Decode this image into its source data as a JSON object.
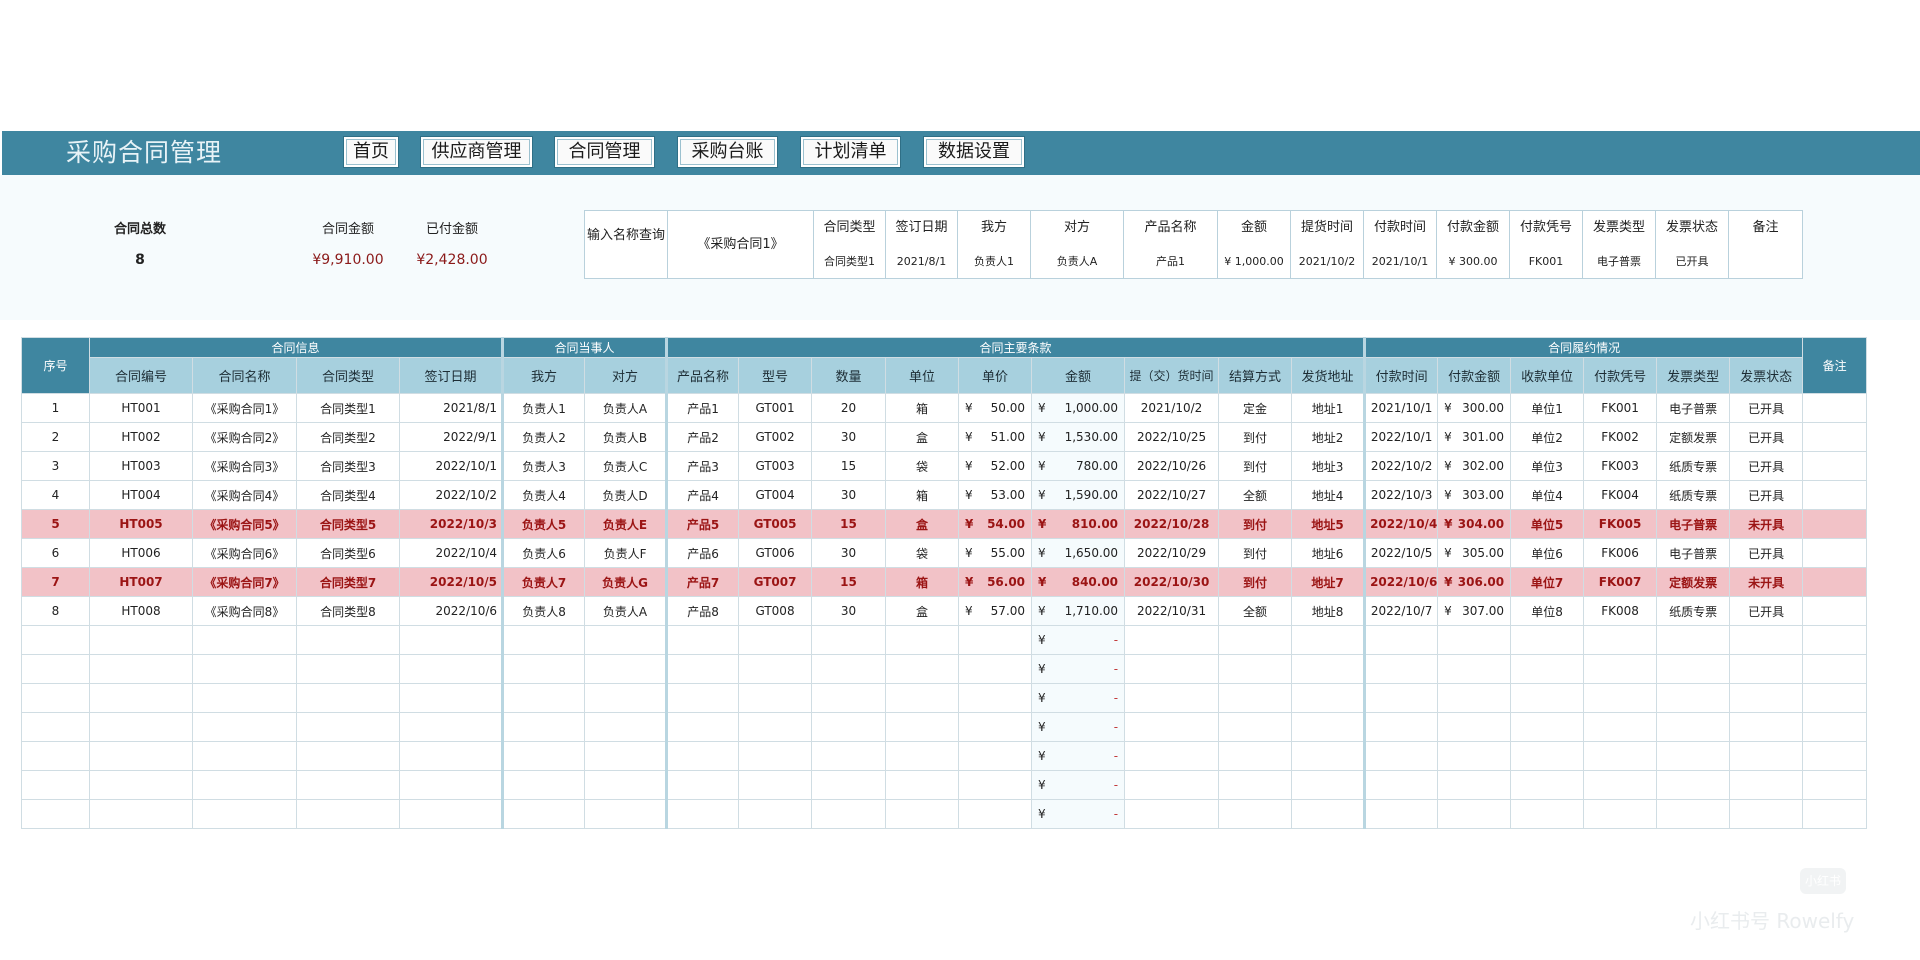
{
  "app": {
    "title": "采购合同管理"
  },
  "nav": [
    {
      "label": "首页"
    },
    {
      "label": "供应商管理"
    },
    {
      "label": "合同管理"
    },
    {
      "label": "采购台账"
    },
    {
      "label": "计划清单"
    },
    {
      "label": "数据设置"
    }
  ],
  "summary": {
    "total_label": "合同总数",
    "total_value": "8",
    "amount_label": "合同金额",
    "amount_value": "¥9,910.00",
    "paid_label": "已付金额",
    "paid_value": "¥2,428.00"
  },
  "query": {
    "label": "输入名称查询",
    "value": "《采购合同1》",
    "columns": [
      "合同类型",
      "签订日期",
      "我方",
      "对方",
      "产品名称",
      "金额",
      "提货时间",
      "付款时间",
      "付款金额",
      "付款凭号",
      "发票类型",
      "发票状态",
      "备注"
    ],
    "values": [
      "合同类型1",
      "2021/8/1",
      "负责人1",
      "负责人A",
      "产品1",
      "¥  1,000.00",
      "2021/10/2",
      "2021/10/1",
      "¥    300.00",
      "FK001",
      "电子普票",
      "已开具",
      ""
    ]
  },
  "table": {
    "seq_header": "序号",
    "remark_header": "备注",
    "groups": [
      "合同信息",
      "合同当事人",
      "合同主要条款",
      "合同履约情况"
    ],
    "headers": [
      "合同编号",
      "合同名称",
      "合同类型",
      "签订日期",
      "我方",
      "对方",
      "产品名称",
      "型号",
      "数量",
      "单位",
      "单价",
      "金额",
      "提（交）货时间",
      "结算方式",
      "发货地址",
      "付款时间",
      "付款金额",
      "收款单位",
      "付款凭号",
      "发票类型",
      "发票状态"
    ],
    "currency": "¥",
    "empty_amount": "-",
    "rows": [
      {
        "seq": "1",
        "no": "HT001",
        "name": "《采购合同1》",
        "type": "合同类型1",
        "date": "2021/8/1",
        "us": "负责人1",
        "them": "负责人A",
        "product": "产品1",
        "model": "GT001",
        "qty": "20",
        "unit": "箱",
        "price": "50.00",
        "amount": "1,000.00",
        "delivery": "2021/10/2",
        "settle": "定金",
        "addr": "地址1",
        "paytime": "2021/10/1",
        "payamt": "300.00",
        "payee": "单位1",
        "voucher": "FK001",
        "invtype": "电子普票",
        "invstatus": "已开具",
        "highlight": false
      },
      {
        "seq": "2",
        "no": "HT002",
        "name": "《采购合同2》",
        "type": "合同类型2",
        "date": "2022/9/1",
        "us": "负责人2",
        "them": "负责人B",
        "product": "产品2",
        "model": "GT002",
        "qty": "30",
        "unit": "盒",
        "price": "51.00",
        "amount": "1,530.00",
        "delivery": "2022/10/25",
        "settle": "到付",
        "addr": "地址2",
        "paytime": "2022/10/1",
        "payamt": "301.00",
        "payee": "单位2",
        "voucher": "FK002",
        "invtype": "定额发票",
        "invstatus": "已开具",
        "highlight": false
      },
      {
        "seq": "3",
        "no": "HT003",
        "name": "《采购合同3》",
        "type": "合同类型3",
        "date": "2022/10/1",
        "us": "负责人3",
        "them": "负责人C",
        "product": "产品3",
        "model": "GT003",
        "qty": "15",
        "unit": "袋",
        "price": "52.00",
        "amount": "780.00",
        "delivery": "2022/10/26",
        "settle": "到付",
        "addr": "地址3",
        "paytime": "2022/10/2",
        "payamt": "302.00",
        "payee": "单位3",
        "voucher": "FK003",
        "invtype": "纸质专票",
        "invstatus": "已开具",
        "highlight": false
      },
      {
        "seq": "4",
        "no": "HT004",
        "name": "《采购合同4》",
        "type": "合同类型4",
        "date": "2022/10/2",
        "us": "负责人4",
        "them": "负责人D",
        "product": "产品4",
        "model": "GT004",
        "qty": "30",
        "unit": "箱",
        "price": "53.00",
        "amount": "1,590.00",
        "delivery": "2022/10/27",
        "settle": "全额",
        "addr": "地址4",
        "paytime": "2022/10/3",
        "payamt": "303.00",
        "payee": "单位4",
        "voucher": "FK004",
        "invtype": "纸质专票",
        "invstatus": "已开具",
        "highlight": false
      },
      {
        "seq": "5",
        "no": "HT005",
        "name": "《采购合同5》",
        "type": "合同类型5",
        "date": "2022/10/3",
        "us": "负责人5",
        "them": "负责人E",
        "product": "产品5",
        "model": "GT005",
        "qty": "15",
        "unit": "盒",
        "price": "54.00",
        "amount": "810.00",
        "delivery": "2022/10/28",
        "settle": "到付",
        "addr": "地址5",
        "paytime": "2022/10/4",
        "payamt": "304.00",
        "payee": "单位5",
        "voucher": "FK005",
        "invtype": "电子普票",
        "invstatus": "未开具",
        "highlight": true
      },
      {
        "seq": "6",
        "no": "HT006",
        "name": "《采购合同6》",
        "type": "合同类型6",
        "date": "2022/10/4",
        "us": "负责人6",
        "them": "负责人F",
        "product": "产品6",
        "model": "GT006",
        "qty": "30",
        "unit": "袋",
        "price": "55.00",
        "amount": "1,650.00",
        "delivery": "2022/10/29",
        "settle": "到付",
        "addr": "地址6",
        "paytime": "2022/10/5",
        "payamt": "305.00",
        "payee": "单位6",
        "voucher": "FK006",
        "invtype": "电子普票",
        "invstatus": "已开具",
        "highlight": false
      },
      {
        "seq": "7",
        "no": "HT007",
        "name": "《采购合同7》",
        "type": "合同类型7",
        "date": "2022/10/5",
        "us": "负责人7",
        "them": "负责人G",
        "product": "产品7",
        "model": "GT007",
        "qty": "15",
        "unit": "箱",
        "price": "56.00",
        "amount": "840.00",
        "delivery": "2022/10/30",
        "settle": "到付",
        "addr": "地址7",
        "paytime": "2022/10/6",
        "payamt": "306.00",
        "payee": "单位7",
        "voucher": "FK007",
        "invtype": "定额发票",
        "invstatus": "未开具",
        "highlight": true
      },
      {
        "seq": "8",
        "no": "HT008",
        "name": "《采购合同8》",
        "type": "合同类型8",
        "date": "2022/10/6",
        "us": "负责人8",
        "them": "负责人A",
        "product": "产品8",
        "model": "GT008",
        "qty": "30",
        "unit": "盒",
        "price": "57.00",
        "amount": "1,710.00",
        "delivery": "2022/10/31",
        "settle": "全额",
        "addr": "地址8",
        "paytime": "2022/10/7",
        "payamt": "307.00",
        "payee": "单位8",
        "voucher": "FK008",
        "invtype": "纸质专票",
        "invstatus": "已开具",
        "highlight": false
      }
    ],
    "empty_rows": 7
  },
  "watermark": {
    "text": "小红书号 Rowelfy",
    "logo": "小红书"
  },
  "colors": {
    "header": "#3f86a0",
    "subheader": "#a7d0de",
    "highlight_row": "#f2c2c7",
    "highlight_text": "#9b1414",
    "money_red": "#8b1a1a"
  }
}
